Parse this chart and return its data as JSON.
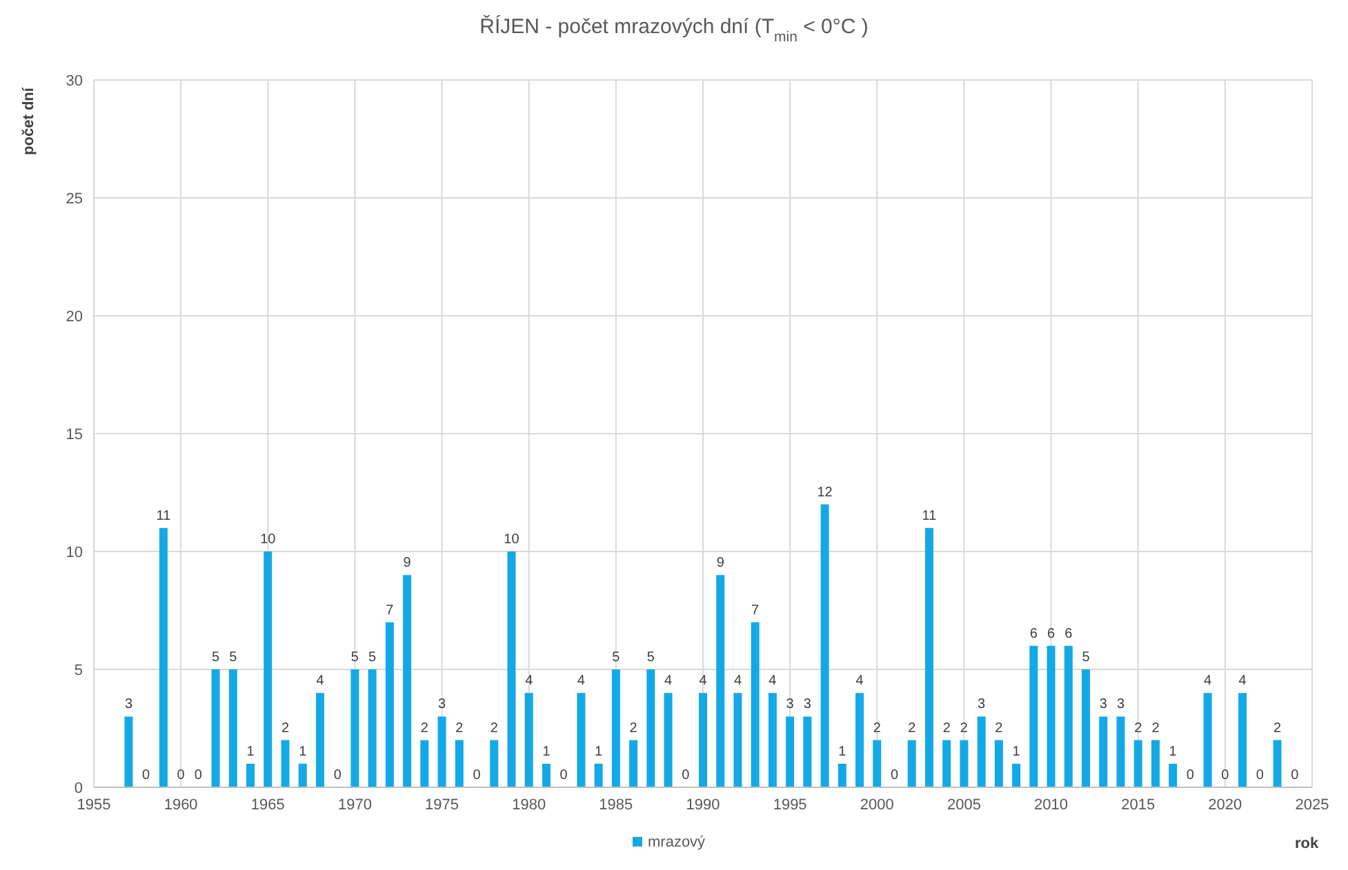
{
  "chart_data": {
    "type": "bar",
    "title": "ŘÍJEN - počet mrazových dní (T$_{min}$ < 0°C )",
    "xlabel": "rok",
    "ylabel": "počet dní",
    "x": [
      1957,
      1958,
      1959,
      1960,
      1961,
      1962,
      1963,
      1964,
      1965,
      1966,
      1967,
      1968,
      1969,
      1970,
      1971,
      1972,
      1973,
      1974,
      1975,
      1976,
      1977,
      1978,
      1979,
      1980,
      1981,
      1982,
      1983,
      1984,
      1985,
      1986,
      1987,
      1988,
      1989,
      1990,
      1991,
      1992,
      1993,
      1994,
      1995,
      1996,
      1997,
      1998,
      1999,
      2000,
      2001,
      2002,
      2003,
      2004,
      2005,
      2006,
      2007,
      2008,
      2009,
      2010,
      2011,
      2012,
      2013,
      2014,
      2015,
      2016,
      2017,
      2018,
      2019,
      2020,
      2021,
      2022,
      2023,
      2024
    ],
    "series": [
      {
        "name": "mrazový",
        "color": "#14a9e6",
        "values": [
          3,
          0,
          11,
          0,
          0,
          5,
          5,
          1,
          10,
          2,
          1,
          4,
          0,
          5,
          5,
          7,
          9,
          2,
          3,
          2,
          0,
          2,
          10,
          4,
          1,
          0,
          4,
          1,
          5,
          2,
          5,
          4,
          0,
          4,
          9,
          4,
          7,
          4,
          3,
          3,
          12,
          1,
          4,
          2,
          0,
          2,
          11,
          2,
          2,
          3,
          2,
          1,
          6,
          6,
          6,
          5,
          3,
          3,
          2,
          2,
          1,
          0,
          4,
          0,
          4,
          0,
          2,
          0
        ]
      }
    ],
    "xlim": [
      1955,
      2025
    ],
    "xticks": [
      1955,
      1960,
      1965,
      1970,
      1975,
      1980,
      1985,
      1990,
      1995,
      2000,
      2005,
      2010,
      2015,
      2020,
      2025
    ],
    "ylim": [
      0,
      30
    ],
    "yticks": [
      0,
      5,
      10,
      15,
      20,
      25,
      30
    ],
    "grid": true,
    "legend": "bottom",
    "data_labels": true
  }
}
